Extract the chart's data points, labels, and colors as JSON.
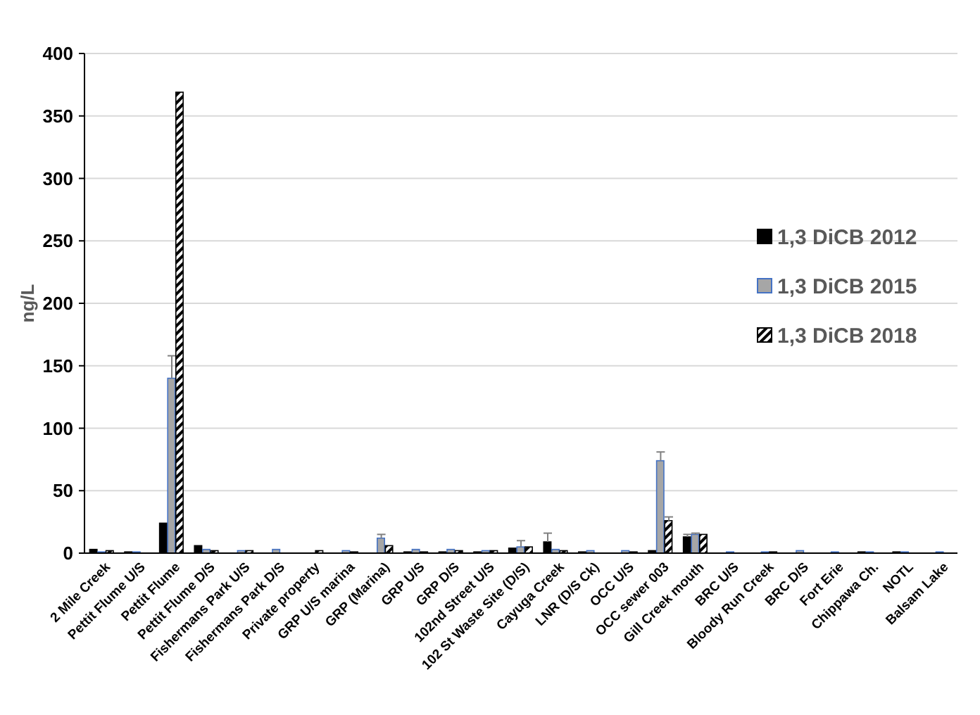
{
  "chart_data": {
    "type": "bar",
    "ylabel": "ng/L",
    "categories": [
      "2 Mile Creek",
      "Pettit Flume U/S",
      "Pettit Flume",
      "Pettit Flume D/S",
      "Fishermans Park U/S",
      "Fishermans Park D/S",
      "Private property",
      "GRP U/S marina",
      "GRP (Marina)",
      "GRP U/S",
      "GRP D/S",
      "102nd Street U/S",
      "102 St Waste Site (D/S)",
      "Cayuga Creek",
      "LNR (D/S Ck)",
      "OCC U/S",
      "OCC sewer 003",
      "Gill Creek mouth",
      "BRC U/S",
      "Bloody Run Creek",
      "BRC D/S",
      "Fort Erie",
      "Chippawa Ch.",
      "NOTL",
      "Balsam Lake"
    ],
    "series": [
      {
        "name": "1,3 DiCB 2012",
        "color": "#000000",
        "values": [
          3,
          1,
          24,
          6,
          null,
          null,
          null,
          null,
          null,
          1,
          1,
          1,
          4,
          9,
          1,
          null,
          2,
          13,
          null,
          null,
          null,
          null,
          1,
          1,
          null
        ],
        "errors": [
          null,
          null,
          null,
          null,
          null,
          null,
          null,
          null,
          null,
          null,
          null,
          null,
          null,
          [
            9,
            16
          ],
          null,
          null,
          null,
          [
            13,
            15
          ],
          null,
          null,
          null,
          null,
          null,
          null,
          null
        ]
      },
      {
        "name": "1,3 DiCB 2015",
        "color": "#a6a6a6",
        "values": [
          1,
          1,
          140,
          3,
          2,
          3,
          null,
          2,
          12,
          3,
          3,
          2,
          5,
          3,
          2,
          2,
          74,
          15,
          1,
          1,
          2,
          1,
          1,
          1,
          1
        ],
        "errors": [
          null,
          null,
          [
            140,
            158
          ],
          null,
          null,
          null,
          null,
          null,
          [
            12,
            15
          ],
          null,
          null,
          null,
          [
            5,
            10
          ],
          null,
          null,
          null,
          [
            74,
            81
          ],
          [
            15,
            16
          ],
          null,
          null,
          null,
          null,
          null,
          null,
          null
        ]
      },
      {
        "name": "1,3 DiCB 2018",
        "color": "#000000",
        "values": [
          2,
          null,
          369,
          2,
          2,
          null,
          2,
          1,
          6,
          1,
          2,
          2,
          5,
          2,
          null,
          1,
          26,
          15,
          null,
          1,
          null,
          null,
          null,
          null,
          null
        ],
        "errors": [
          null,
          null,
          null,
          null,
          null,
          null,
          null,
          null,
          null,
          null,
          null,
          null,
          null,
          null,
          null,
          null,
          [
            26,
            29
          ],
          null,
          null,
          null,
          null,
          null,
          null,
          null,
          null
        ]
      }
    ],
    "ylim": [
      0,
      400
    ],
    "yticks": [
      0,
      50,
      100,
      150,
      200,
      250,
      300,
      350,
      400
    ],
    "grid": "y",
    "legend": "right"
  }
}
